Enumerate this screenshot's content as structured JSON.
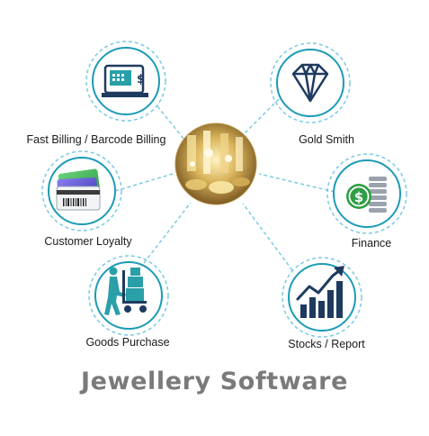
{
  "title": "Jewellery Software",
  "center": {
    "icon": "jewellery-store-photo"
  },
  "features": [
    {
      "key": "billing",
      "label": "Fast Billing / Barcode Billing",
      "icon": "cash-register-icon"
    },
    {
      "key": "gold",
      "label": "Gold Smith",
      "icon": "diamond-icon"
    },
    {
      "key": "loyalty",
      "label": "Customer Loyalty",
      "icon": "loyalty-cards-icon"
    },
    {
      "key": "finance",
      "label": "Finance",
      "icon": "dollar-coins-icon"
    },
    {
      "key": "goods",
      "label": "Goods Purchase",
      "icon": "hand-truck-icon"
    },
    {
      "key": "stocks",
      "label": "Stocks / Report",
      "icon": "rising-bar-chart-icon"
    }
  ],
  "colors": {
    "ring": "#1b9bb6",
    "ring_dash": "#7ccbe0",
    "icon_dark": "#1f3a5f",
    "icon_teal": "#2a9fa8",
    "gold": "#c9a24a",
    "title": "#7a7a7a"
  }
}
